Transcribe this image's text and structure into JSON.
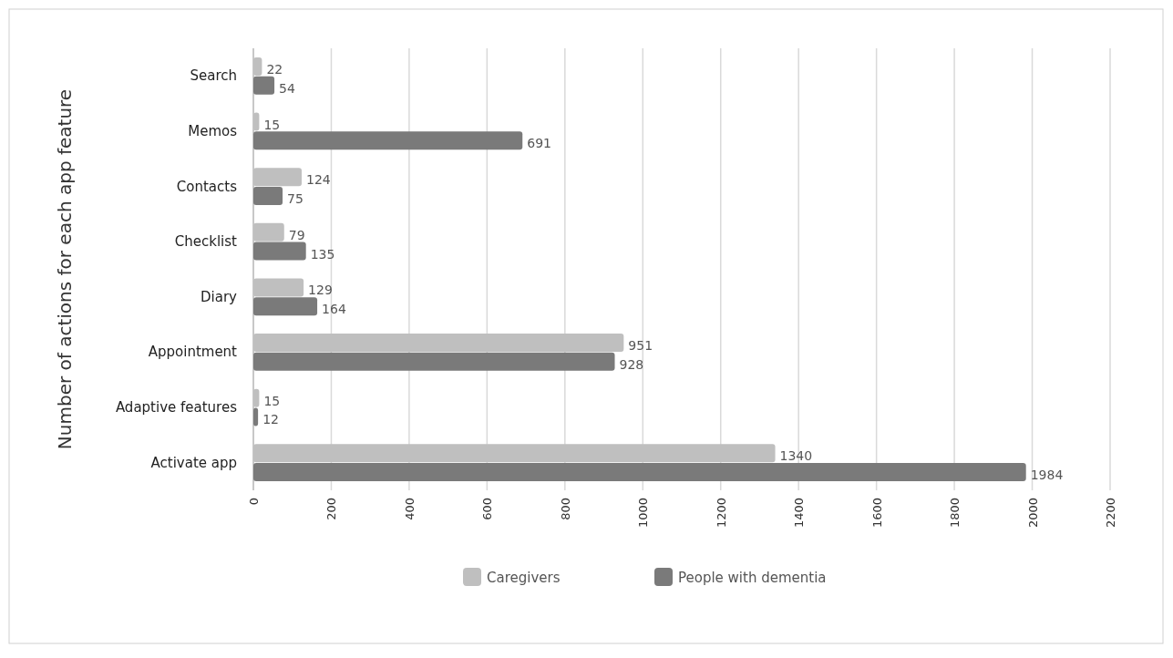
{
  "chart_data": {
    "type": "bar",
    "orientation": "horizontal",
    "ylabel": "Number of actions for each app feature",
    "categories": [
      "Search",
      "Memos",
      "Contacts",
      "Checklist",
      "Diary",
      "Appointment",
      "Adaptive features",
      "Activate app"
    ],
    "series": [
      {
        "name": "Caregivers",
        "color": "#bfbfbf",
        "values": [
          22,
          15,
          124,
          79,
          129,
          951,
          15,
          1340
        ]
      },
      {
        "name": "People with dementia",
        "color": "#7a7a7a",
        "values": [
          54,
          691,
          75,
          135,
          164,
          928,
          12,
          1984
        ]
      }
    ],
    "xlim": [
      0,
      2200
    ],
    "xticks": [
      0,
      200,
      400,
      600,
      800,
      1000,
      1200,
      1400,
      1600,
      1800,
      2000,
      2200
    ],
    "grid": "x",
    "legend": "bottom",
    "data_labels": true
  }
}
